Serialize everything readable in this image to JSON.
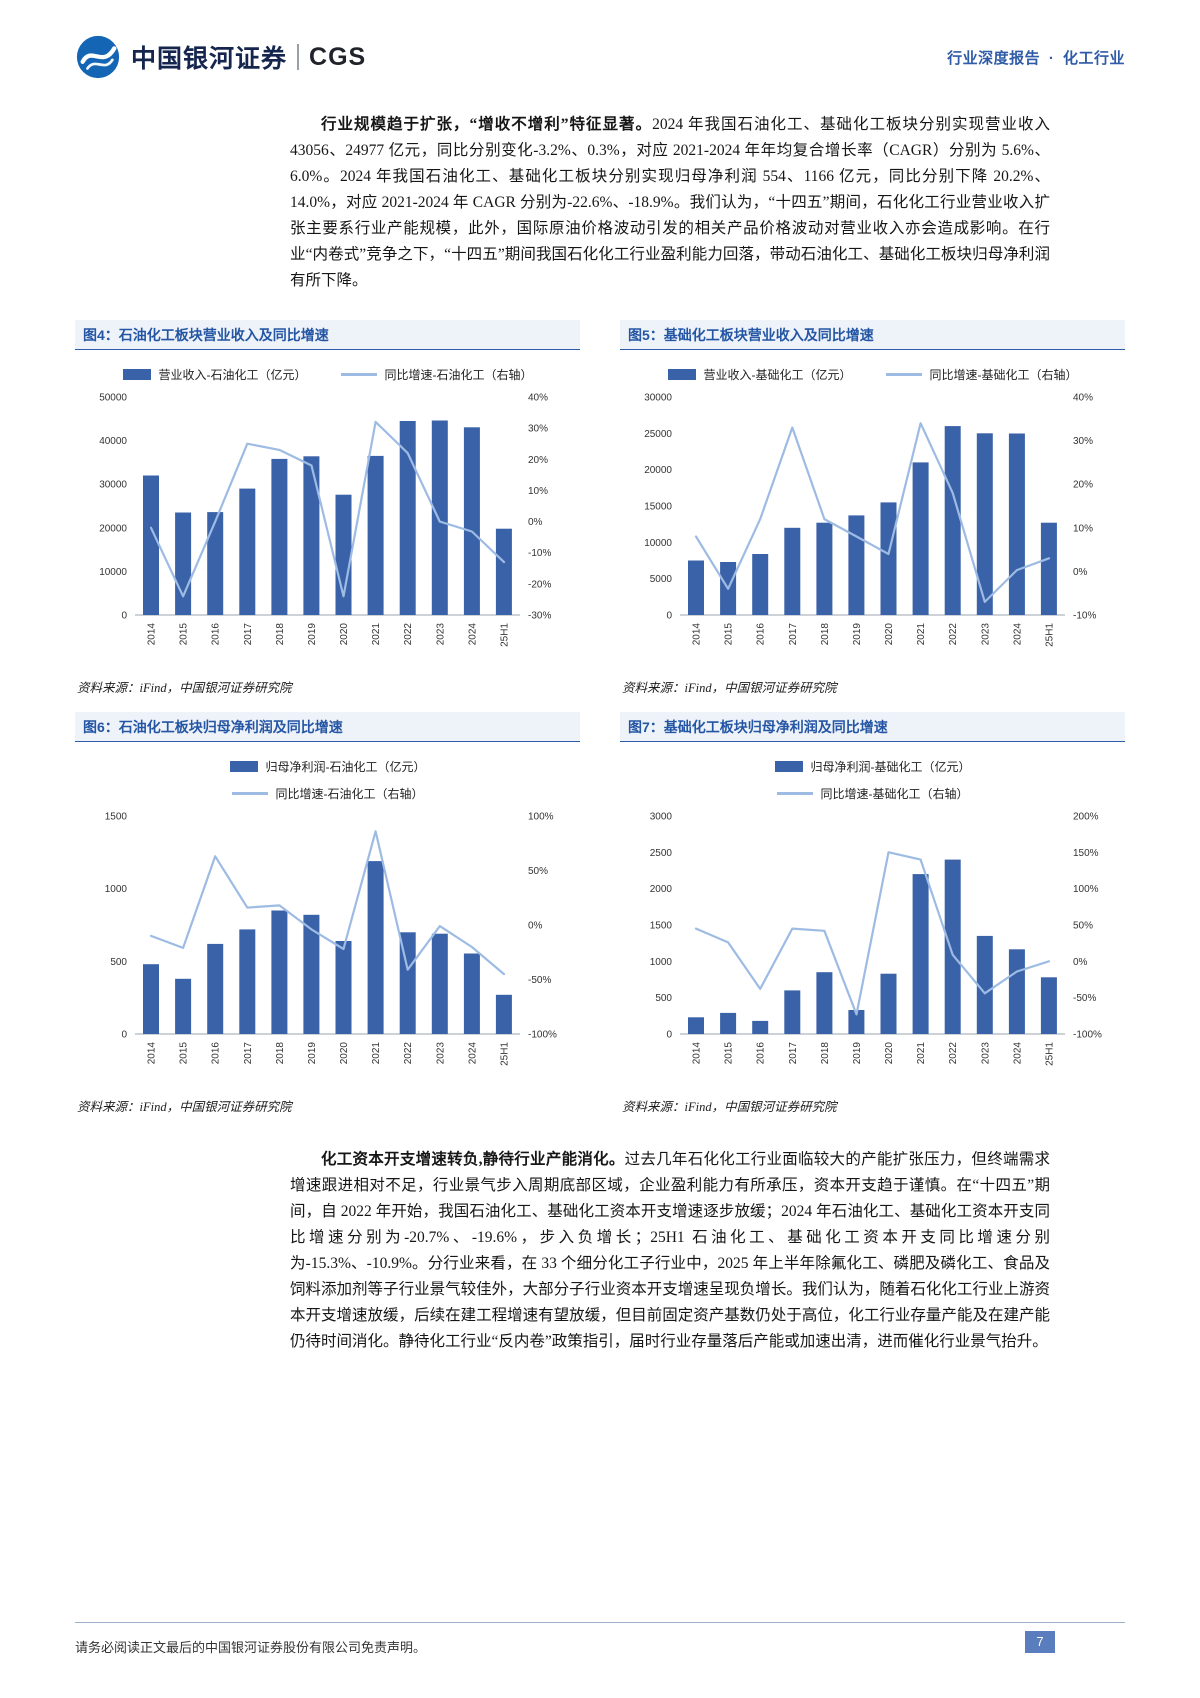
{
  "page": {
    "header": {
      "brand_cn": "中国银河证券",
      "brand_en": "CGS",
      "report_type": "行业深度报告",
      "separator": "·",
      "industry": "化工行业"
    },
    "paragraph1": {
      "lead": "行业规模趋于扩张，“增收不增利”特征显著。",
      "body": "2024 年我国石油化工、基础化工板块分别实现营业收入 43056、24977 亿元，同比分别变化-3.2%、0.3%，对应 2021-2024 年年均复合增长率（CAGR）分别为 5.6%、6.0%。2024 年我国石油化工、基础化工板块分别实现归母净利润 554、1166 亿元，同比分别下降 20.2%、14.0%，对应 2021-2024 年 CAGR 分别为-22.6%、-18.9%。我们认为，“十四五”期间，石化化工行业营业收入扩张主要系行业产能规模，此外，国际原油价格波动引发的相关产品价格波动对营业收入亦会造成影响。在行业“内卷式”竞争之下，“十四五”期间我国石化化工行业盈利能力回落，带动石油化工、基础化工板块归母净利润有所下降。"
    },
    "paragraph2": {
      "lead": "化工资本开支增速转负,静待行业产能消化。",
      "body": "过去几年石化化工行业面临较大的产能扩张压力，但终端需求增速跟进相对不足，行业景气步入周期底部区域，企业盈利能力有所承压，资本开支趋于谨慎。在“十四五”期间，自 2022 年开始，我国石油化工、基础化工资本开支增速逐步放缓；2024 年石油化工、基础化工资本开支同比增速分别为-20.7%、-19.6%，步入负增长；25H1 石油化工、基础化工资本开支同比增速分别为-15.3%、-10.9%。分行业来看，在 33 个细分化工子行业中，2025 年上半年除氟化工、磷肥及磷化工、食品及饲料添加剂等子行业景气较佳外，大部分子行业资本开支增速呈现负增长。我们认为，随着石化化工行业上游资本开支增速放缓，后续在建工程增速有望放缓，但目前固定资产基数仍处于高位，化工行业存量产能及在建产能仍待时间消化。静待化工行业“反内卷”政策指引，届时行业存量落后产能或加速出清，进而催化行业景气抬升。"
    },
    "footer": {
      "disclaimer": "请务必阅读正文最后的中国银河证券股份有限公司免责声明。",
      "page_number": "7"
    }
  },
  "colors": {
    "bar": "#3a62a8",
    "line": "#9dbbe3",
    "accent": "#2f5ba7",
    "logo": "#1565b5"
  },
  "chart_data": [
    {
      "id": "fig4",
      "type": "bar+line",
      "title": "图4：石油化工板块营业收入及同比增速",
      "categories": [
        "2014",
        "2015",
        "2016",
        "2017",
        "2018",
        "2019",
        "2020",
        "2021",
        "2022",
        "2023",
        "2024",
        "25H1"
      ],
      "series": [
        {
          "name": "营业收入-石油化工（亿元）",
          "kind": "bar",
          "axis": "left",
          "values": [
            32000,
            23500,
            23600,
            29000,
            35800,
            36400,
            27600,
            36500,
            44500,
            44600,
            43056,
            19800
          ]
        },
        {
          "name": "同比增速-石油化工（右轴）",
          "kind": "line",
          "axis": "right",
          "values": [
            -2,
            -24,
            0,
            25,
            23,
            18,
            -24,
            32,
            22,
            0,
            -3.2,
            -13
          ]
        }
      ],
      "left_axis": {
        "min": 0,
        "max": 50000,
        "step": 10000
      },
      "right_axis": {
        "min": -30,
        "max": 40,
        "step": 10,
        "suffix": "%"
      },
      "grid": false,
      "legend_position": "top",
      "legend_layout": "row",
      "source": "资料来源：iFind，中国银河证券研究院"
    },
    {
      "id": "fig5",
      "type": "bar+line",
      "title": "图5：基础化工板块营业收入及同比增速",
      "categories": [
        "2014",
        "2015",
        "2016",
        "2017",
        "2018",
        "2019",
        "2020",
        "2021",
        "2022",
        "2023",
        "2024",
        "25H1"
      ],
      "series": [
        {
          "name": "营业收入-基础化工（亿元）",
          "kind": "bar",
          "axis": "left",
          "values": [
            7500,
            7300,
            8400,
            12000,
            12700,
            13700,
            15500,
            21000,
            26000,
            25000,
            24977,
            12700
          ]
        },
        {
          "name": "同比增速-基础化工（右轴）",
          "kind": "line",
          "axis": "right",
          "values": [
            8,
            -4,
            12,
            33,
            12,
            8,
            4,
            34,
            18,
            -7,
            0.3,
            3
          ]
        }
      ],
      "left_axis": {
        "min": 0,
        "max": 30000,
        "step": 5000
      },
      "right_axis": {
        "min": -10,
        "max": 40,
        "step": 10,
        "suffix": "%"
      },
      "grid": false,
      "legend_position": "top",
      "legend_layout": "row",
      "source": "资料来源：iFind，中国银河证券研究院"
    },
    {
      "id": "fig6",
      "type": "bar+line",
      "title": "图6：石油化工板块归母净利润及同比增速",
      "categories": [
        "2014",
        "2015",
        "2016",
        "2017",
        "2018",
        "2019",
        "2020",
        "2021",
        "2022",
        "2023",
        "2024",
        "25H1"
      ],
      "series": [
        {
          "name": "归母净利润-石油化工（亿元）",
          "kind": "bar",
          "axis": "left",
          "values": [
            480,
            380,
            620,
            720,
            850,
            820,
            640,
            1190,
            700,
            690,
            554,
            270
          ]
        },
        {
          "name": "同比增速-石油化工（右轴）",
          "kind": "line",
          "axis": "right",
          "values": [
            -10,
            -21,
            63,
            16,
            18,
            -4,
            -22,
            86,
            -41,
            -1,
            -20.2,
            -45
          ]
        }
      ],
      "left_axis": {
        "min": 0,
        "max": 1500,
        "step": 500
      },
      "right_axis": {
        "min": -100,
        "max": 100,
        "step": 50,
        "suffix": "%"
      },
      "grid": false,
      "legend_position": "top",
      "legend_layout": "column",
      "source": "资料来源：iFind，中国银河证券研究院"
    },
    {
      "id": "fig7",
      "type": "bar+line",
      "title": "图7：基础化工板块归母净利润及同比增速",
      "categories": [
        "2014",
        "2015",
        "2016",
        "2017",
        "2018",
        "2019",
        "2020",
        "2021",
        "2022",
        "2023",
        "2024",
        "25H1"
      ],
      "series": [
        {
          "name": "归母净利润-基础化工（亿元）",
          "kind": "bar",
          "axis": "left",
          "values": [
            230,
            290,
            180,
            600,
            850,
            330,
            830,
            2200,
            2400,
            1350,
            1166,
            780
          ]
        },
        {
          "name": "同比增速-基础化工（右轴）",
          "kind": "line",
          "axis": "right",
          "values": [
            45,
            26,
            -38,
            45,
            42,
            -73,
            150,
            140,
            9,
            -44,
            -14,
            0
          ]
        }
      ],
      "left_axis": {
        "min": 0,
        "max": 3000,
        "step": 500
      },
      "right_axis": {
        "min": -100,
        "max": 200,
        "step": 50,
        "suffix": "%"
      },
      "grid": false,
      "legend_position": "top",
      "legend_layout": "column",
      "source": "资料来源：iFind，中国银河证券研究院"
    }
  ]
}
